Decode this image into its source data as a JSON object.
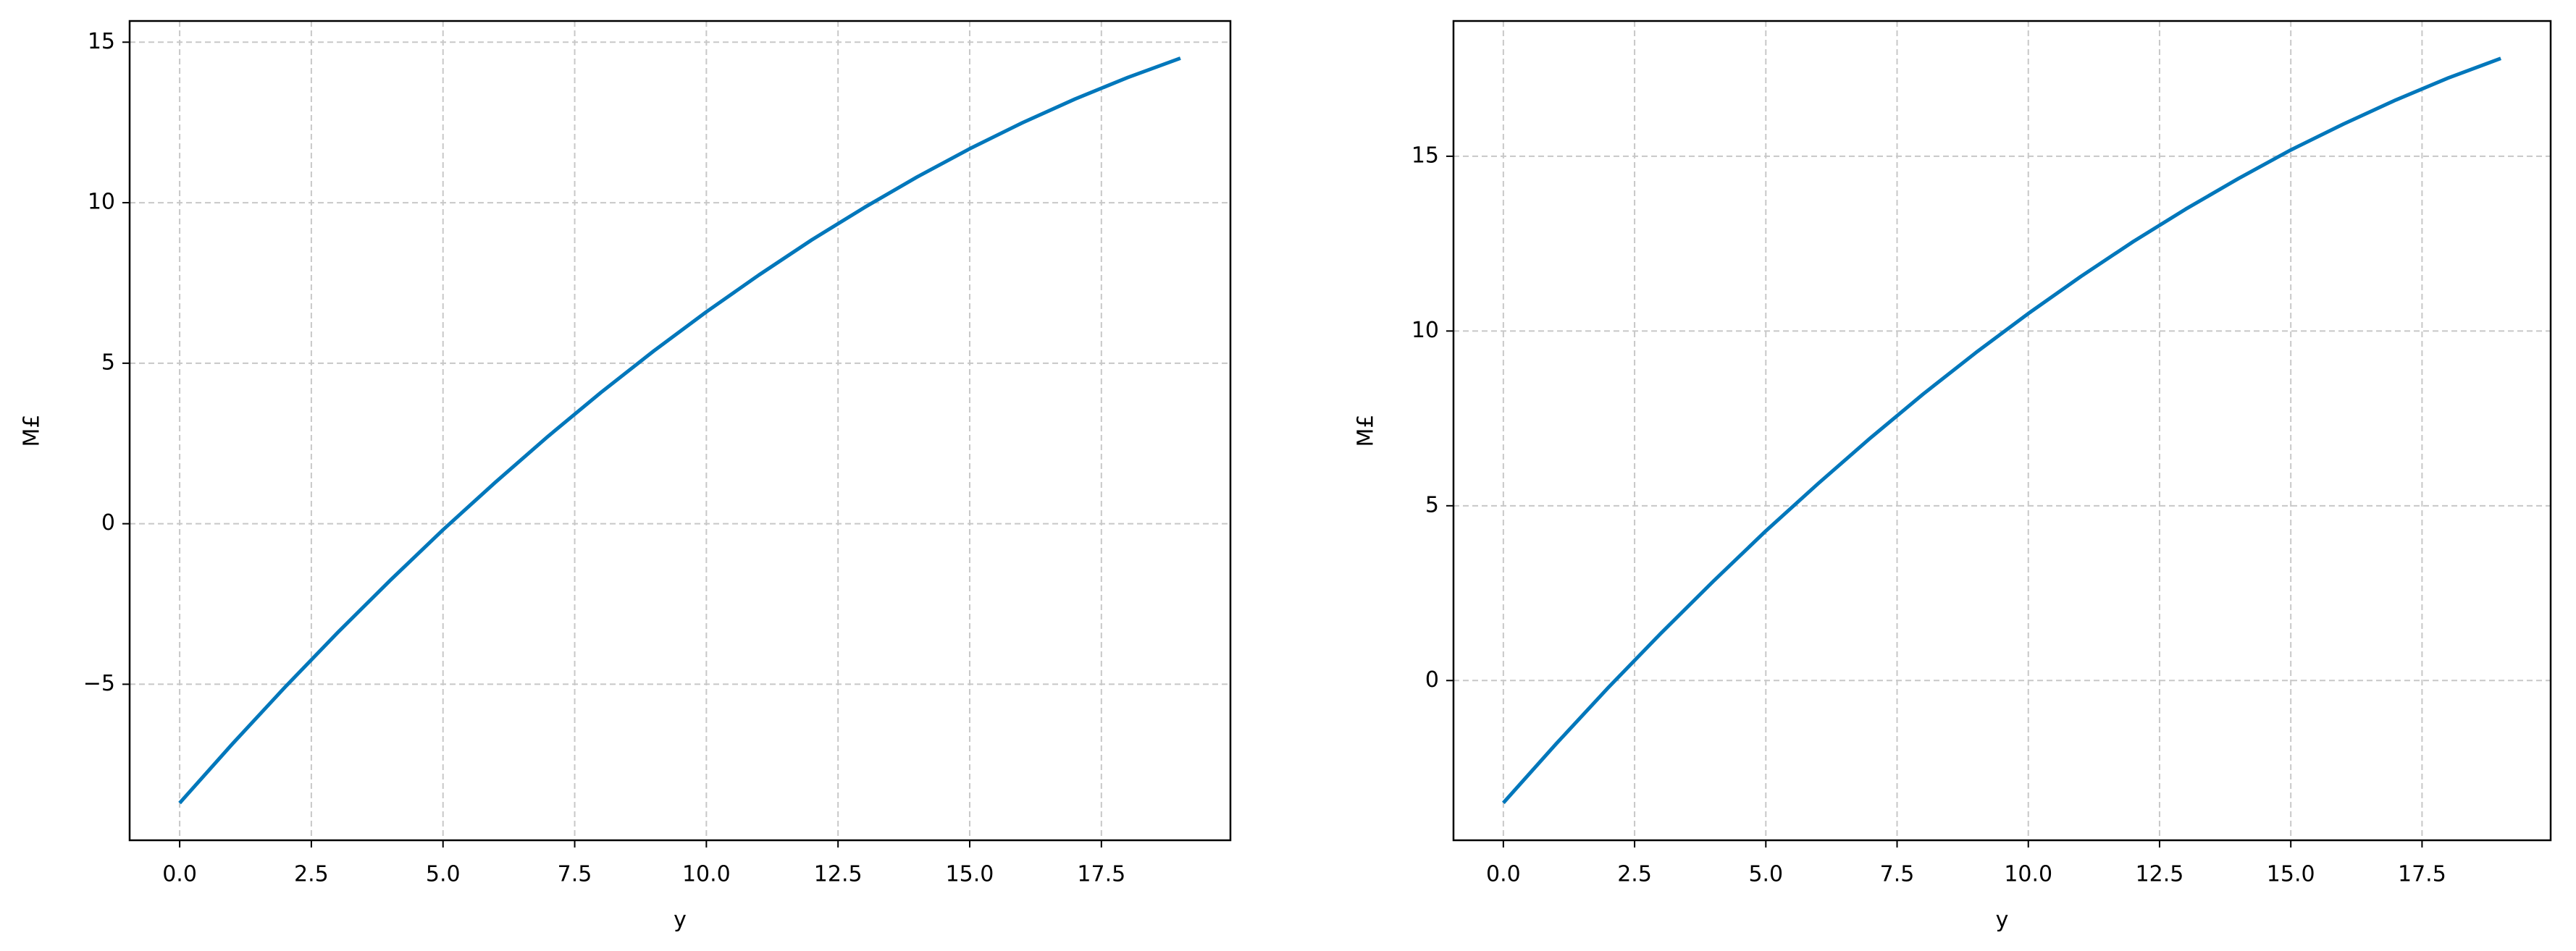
{
  "chart_data": [
    {
      "type": "line",
      "xlabel": "y",
      "ylabel": "M£",
      "color": "#0077bb",
      "grid": true,
      "x": [
        0,
        1,
        2,
        3,
        4,
        5,
        6,
        7,
        8,
        9,
        10,
        11,
        12,
        13,
        14,
        15,
        16,
        17,
        18,
        19
      ],
      "values": [
        -8.7,
        -6.86,
        -5.09,
        -3.39,
        -1.76,
        -0.19,
        1.3,
        2.73,
        4.09,
        5.38,
        6.6,
        7.75,
        8.84,
        9.85,
        10.8,
        11.68,
        12.49,
        13.23,
        13.9,
        14.5
      ],
      "xlim": [
        -0.95,
        19.95
      ],
      "xticks": [
        {
          "value": 0,
          "label": "0.0"
        },
        2.5,
        {
          "value": 5,
          "label": "5.0"
        },
        7.5,
        {
          "value": 10,
          "label": "10.0"
        },
        12.5,
        {
          "value": 15,
          "label": "15.0"
        },
        17.5
      ],
      "ylim": [
        -9.86,
        15.66
      ],
      "yticks": [
        {
          "value": -5,
          "label": "−5"
        },
        0,
        5,
        10,
        15
      ]
    },
    {
      "type": "line",
      "xlabel": "y",
      "ylabel": "M£",
      "color": "#0077bb",
      "grid": true,
      "x": [
        0,
        1,
        2,
        3,
        4,
        5,
        6,
        7,
        8,
        9,
        10,
        11,
        12,
        13,
        14,
        15,
        16,
        17,
        18,
        19
      ],
      "values": [
        -3.5,
        -1.82,
        -0.2,
        1.35,
        2.84,
        4.28,
        5.64,
        6.95,
        8.2,
        9.38,
        10.5,
        11.56,
        12.56,
        13.49,
        14.36,
        15.18,
        15.92,
        16.61,
        17.24,
        17.8
      ],
      "xlim": [
        -0.95,
        19.95
      ],
      "xticks": [
        {
          "value": 0,
          "label": "0.0"
        },
        2.5,
        {
          "value": 5,
          "label": "5.0"
        },
        7.5,
        {
          "value": 10,
          "label": "10.0"
        },
        12.5,
        {
          "value": 15,
          "label": "15.0"
        },
        17.5
      ],
      "ylim": [
        -4.57,
        18.87
      ],
      "yticks": [
        0,
        5,
        10,
        15
      ]
    }
  ]
}
